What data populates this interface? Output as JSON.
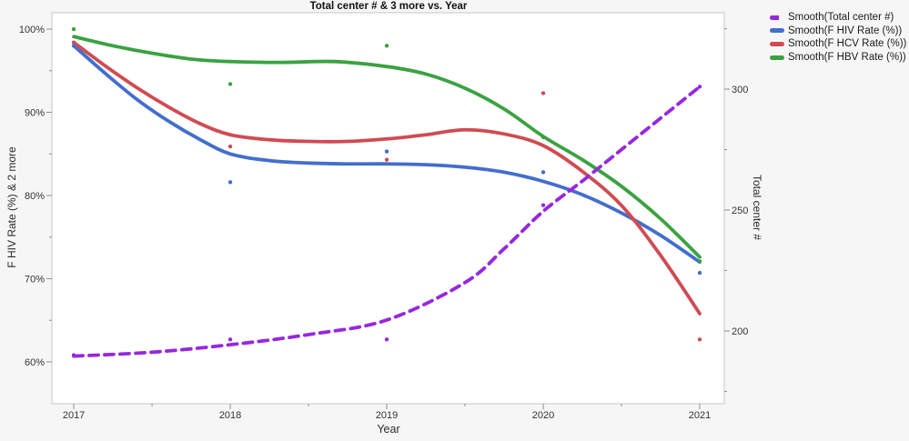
{
  "window": {
    "background": "#f6f6f7",
    "plot_background": "#ffffff",
    "frame_color": "#c6c7c9",
    "tick_color": "#8f8f8f",
    "tick_label_color": "#333333"
  },
  "chart_data": {
    "type": "line",
    "title": "Total center # & 3 more vs. Year",
    "xlabel": "Year",
    "legend_position": "top-right-outside",
    "grid": false,
    "x_axis": {
      "title": "Year",
      "min": 2016.86,
      "max": 2021.157,
      "major_ticks": [
        {
          "v": 2017,
          "label": "2017"
        },
        {
          "v": 2018,
          "label": "2018"
        },
        {
          "v": 2019,
          "label": "2019"
        },
        {
          "v": 2020,
          "label": "2020"
        },
        {
          "v": 2021,
          "label": "2021"
        }
      ],
      "minor_ticks": [
        2017.5,
        2018.5,
        2019.5,
        2020.5
      ]
    },
    "left_axis": {
      "title": "F HIV Rate (%) & 2 more",
      "min": 54.97,
      "max": 101.97,
      "major_ticks": [
        {
          "v": 60,
          "label": "60%"
        },
        {
          "v": 70,
          "label": "70%"
        },
        {
          "v": 80,
          "label": "80%"
        },
        {
          "v": 90,
          "label": "90%"
        },
        {
          "v": 100,
          "label": "100%"
        }
      ],
      "minor_ticks": [
        65,
        75,
        85,
        95
      ]
    },
    "right_axis": {
      "title": "Total center #",
      "min": 169.9,
      "max": 331.6,
      "major_ticks": [
        {
          "v": 200,
          "label": "200"
        },
        {
          "v": 250,
          "label": "250"
        },
        {
          "v": 300,
          "label": "300"
        }
      ],
      "minor_ticks": [
        175,
        225,
        275,
        325
      ]
    },
    "series": [
      {
        "name": "Smooth(Total center #)",
        "color": "#9727dd",
        "axis": "right",
        "dashed": true,
        "points": [
          [
            2017,
            190
          ],
          [
            2018,
            196.5
          ],
          [
            2019,
            196.5
          ],
          [
            2020,
            252
          ],
          [
            2021,
            301
          ]
        ],
        "smooth": [
          [
            2017,
            189.6
          ],
          [
            2017.5,
            191.2
          ],
          [
            2018,
            194.3
          ],
          [
            2018.5,
            198.5
          ],
          [
            2019,
            204.5
          ],
          [
            2019.5,
            220
          ],
          [
            2019.75,
            234
          ],
          [
            2020,
            249.5
          ],
          [
            2020.25,
            262
          ],
          [
            2020.5,
            275
          ],
          [
            2020.75,
            288
          ],
          [
            2021,
            301
          ]
        ]
      },
      {
        "name": "Smooth(F HIV Rate (%))",
        "color": "#436ecd",
        "axis": "left",
        "dashed": false,
        "points": [
          [
            2017,
            98
          ],
          [
            2018,
            81.6
          ],
          [
            2019,
            85.3
          ],
          [
            2020,
            82.8
          ],
          [
            2021,
            70.7
          ]
        ],
        "smooth": [
          [
            2017,
            98.0
          ],
          [
            2017.2,
            94.7
          ],
          [
            2017.4,
            91.6
          ],
          [
            2017.6,
            89.0
          ],
          [
            2017.8,
            86.8
          ],
          [
            2018,
            85.0
          ],
          [
            2018.25,
            84.2
          ],
          [
            2018.5,
            83.9
          ],
          [
            2018.75,
            83.8
          ],
          [
            2019,
            83.8
          ],
          [
            2019.25,
            83.7
          ],
          [
            2019.5,
            83.4
          ],
          [
            2019.75,
            82.8
          ],
          [
            2020,
            81.7
          ],
          [
            2020.25,
            80.1
          ],
          [
            2020.5,
            77.9
          ],
          [
            2020.75,
            75.2
          ],
          [
            2021,
            72.0
          ]
        ]
      },
      {
        "name": "Smooth(F HCV Rate (%))",
        "color": "#d04b52",
        "axis": "left",
        "dashed": false,
        "points": [
          [
            2017,
            98.4
          ],
          [
            2018,
            85.9
          ],
          [
            2019,
            84.3
          ],
          [
            2020,
            92.3
          ],
          [
            2021,
            62.7
          ]
        ],
        "smooth": [
          [
            2017,
            98.4
          ],
          [
            2017.2,
            95.6
          ],
          [
            2017.4,
            93.0
          ],
          [
            2017.6,
            90.7
          ],
          [
            2017.8,
            88.7
          ],
          [
            2018,
            87.3
          ],
          [
            2018.25,
            86.7
          ],
          [
            2018.5,
            86.5
          ],
          [
            2018.75,
            86.5
          ],
          [
            2019,
            86.8
          ],
          [
            2019.25,
            87.3
          ],
          [
            2019.5,
            87.9
          ],
          [
            2019.75,
            87.4
          ],
          [
            2020,
            86.0
          ],
          [
            2020.25,
            82.9
          ],
          [
            2020.5,
            78.8
          ],
          [
            2020.75,
            72.8
          ],
          [
            2021,
            65.8
          ]
        ]
      },
      {
        "name": "Smooth(F HBV Rate (%))",
        "color": "#3ba241",
        "axis": "left",
        "dashed": false,
        "points": [
          [
            2017,
            100
          ],
          [
            2018,
            93.4
          ],
          [
            2019,
            98
          ],
          [
            2020,
            87
          ],
          [
            2021,
            72.1
          ]
        ],
        "smooth": [
          [
            2017,
            99.1
          ],
          [
            2017.25,
            98.0
          ],
          [
            2017.5,
            97.1
          ],
          [
            2017.75,
            96.4
          ],
          [
            2018,
            96.1
          ],
          [
            2018.33,
            96.0
          ],
          [
            2018.67,
            96.1
          ],
          [
            2019,
            95.5
          ],
          [
            2019.25,
            94.6
          ],
          [
            2019.5,
            92.9
          ],
          [
            2019.75,
            90.4
          ],
          [
            2020,
            87.1
          ],
          [
            2020.25,
            84.3
          ],
          [
            2020.5,
            81.1
          ],
          [
            2020.75,
            77.2
          ],
          [
            2021,
            72.6
          ]
        ]
      }
    ]
  }
}
